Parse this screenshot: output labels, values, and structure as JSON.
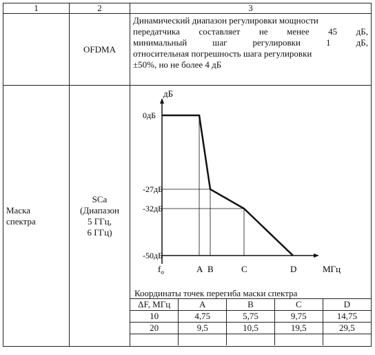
{
  "header": {
    "col1": "1",
    "col2": "2",
    "col3": "3"
  },
  "row1": {
    "col2": "OFDMA",
    "lines": [
      "Динамический диапазон регулировки мощности",
      "передатчика составляет не менее 45 дБ,",
      "минимальный шаг регулировки 1 дБ,",
      "относительная погрешность шага регулировки",
      "±50%, но не более 4 дБ"
    ]
  },
  "row2": {
    "col1_line1": "Маска",
    "col1_line2": "спектра",
    "col2_lines": [
      "SCa",
      "(Диапазон",
      "5 ГГц,",
      "6 ГГц)"
    ],
    "coords_title": "Координаты точек перегиба маски спектра",
    "coords_table": {
      "headers": [
        "ΔF, МГц",
        "A",
        "B",
        "C",
        "D"
      ],
      "rows": [
        [
          "10",
          "4,75",
          "5,75",
          "9,75",
          "14,75"
        ],
        [
          "20",
          "9,5",
          "10,5",
          "19,5",
          "29,5"
        ],
        [
          "",
          "",
          "",
          "",
          ""
        ]
      ]
    }
  },
  "chart_data": {
    "type": "line",
    "ylabel": "дБ",
    "xlabel": "МГц",
    "y_ticks": [
      "0дБ",
      "-27дБ",
      "-32дБ",
      "-50дБ"
    ],
    "y_values": [
      0,
      -27,
      -32,
      -50
    ],
    "x_ticks": [
      "fo",
      "A",
      "B",
      "C",
      "D"
    ],
    "series": [
      {
        "points": [
          [
            "fo",
            0
          ],
          [
            "A",
            0
          ],
          [
            "B",
            -27
          ],
          [
            "C",
            -32
          ],
          [
            "D",
            -50
          ]
        ]
      }
    ]
  }
}
